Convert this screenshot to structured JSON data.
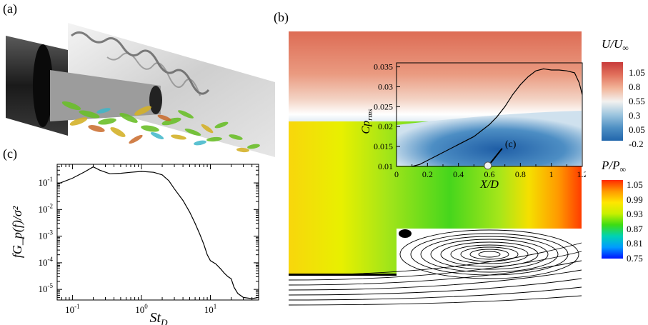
{
  "labels": {
    "a": "(a)",
    "b": "(b)",
    "c": "(c)",
    "marker_c": "(c)"
  },
  "panel_c": {
    "chart_data": {
      "type": "line",
      "title": "",
      "xlabel": "St",
      "xlabel_sub": "D",
      "ylabel": "fG_p(f)/σ²",
      "xscale": "log",
      "yscale": "log",
      "xlim": [
        0.06,
        50
      ],
      "ylim": [
        4e-06,
        0.5
      ],
      "x_ticks": [
        {
          "base": "10",
          "exp": "-1",
          "value": 0.1
        },
        {
          "base": "10",
          "exp": "0",
          "value": 1
        },
        {
          "base": "10",
          "exp": "1",
          "value": 10
        }
      ],
      "y_ticks": [
        {
          "base": "10",
          "exp": "-1",
          "value": 0.1
        },
        {
          "base": "10",
          "exp": "-2",
          "value": 0.01
        },
        {
          "base": "10",
          "exp": "-3",
          "value": 0.001
        },
        {
          "base": "10",
          "exp": "-4",
          "value": 0.0001
        },
        {
          "base": "10",
          "exp": "-5",
          "value": 1e-05
        }
      ],
      "x": [
        0.06,
        0.1,
        0.15,
        0.2,
        0.25,
        0.35,
        0.5,
        0.7,
        1.0,
        1.5,
        2.0,
        2.5,
        3.0,
        4.0,
        5.0,
        6.0,
        7.0,
        8.0,
        9.0,
        10.0,
        12.0,
        14.0,
        16.0,
        18.0,
        20.0,
        22.0,
        25.0,
        30.0,
        40.0,
        50.0
      ],
      "y": [
        0.09,
        0.15,
        0.26,
        0.4,
        0.3,
        0.22,
        0.23,
        0.25,
        0.27,
        0.25,
        0.2,
        0.12,
        0.06,
        0.022,
        0.008,
        0.003,
        0.0012,
        0.0005,
        0.0002,
        0.00012,
        9e-05,
        6e-05,
        4e-05,
        3e-05,
        2.5e-05,
        1.2e-05,
        7e-06,
        5e-06,
        4.5e-06,
        5e-06
      ]
    }
  },
  "panel_b": {
    "colorbar_U": {
      "title": "U/U",
      "title_sub": "∞",
      "ticks": [
        "1.05",
        "0.8",
        "0.55",
        "0.3",
        "0.05",
        "-0.2"
      ],
      "colors": [
        "#c83a3a",
        "#e2735e",
        "#f2b59a",
        "#f3f1ef",
        "#9ec6df",
        "#4f90c4",
        "#2166ac"
      ]
    },
    "colorbar_P": {
      "title": "P/P",
      "title_sub": "∞",
      "ticks": [
        "1.05",
        "0.99",
        "0.93",
        "0.87",
        "0.81",
        "0.75"
      ],
      "colors": [
        "#ff2a00",
        "#ff9900",
        "#ffe600",
        "#c8f000",
        "#3cdc14",
        "#00d2b4",
        "#009bff",
        "#0014ff"
      ]
    },
    "chart_data": {
      "type": "line",
      "title": "",
      "xlabel": "X/D",
      "ylabel": "Cp",
      "ylabel_sub": "rms",
      "xlim": [
        0,
        1.2
      ],
      "ylim": [
        0.01,
        0.036
      ],
      "x_ticks": [
        "0",
        "0.2",
        "0.4",
        "0.6",
        "0.8",
        "1",
        "1.2"
      ],
      "y_ticks": [
        "0.01",
        "0.015",
        "0.02",
        "0.025",
        "0.03",
        "0.035"
      ],
      "x": [
        0.1,
        0.15,
        0.2,
        0.3,
        0.4,
        0.5,
        0.6,
        0.65,
        0.7,
        0.75,
        0.8,
        0.85,
        0.9,
        0.95,
        1.0,
        1.05,
        1.1,
        1.15,
        1.18,
        1.2
      ],
      "y": [
        0.01,
        0.0105,
        0.0115,
        0.0135,
        0.0155,
        0.0175,
        0.0205,
        0.0225,
        0.025,
        0.028,
        0.0305,
        0.0325,
        0.034,
        0.0345,
        0.0342,
        0.0342,
        0.034,
        0.0335,
        0.031,
        0.028
      ],
      "marker": {
        "x": 0.59,
        "y": 0.0102,
        "label": "(c)"
      }
    }
  }
}
